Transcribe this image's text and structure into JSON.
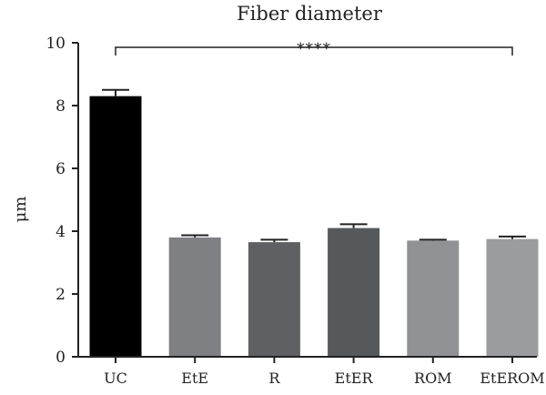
{
  "chart_data": {
    "type": "bar",
    "title": "Fiber diameter",
    "xlabel": "",
    "ylabel": "μm",
    "ylim": [
      0,
      10
    ],
    "yticks": [
      0,
      2,
      4,
      6,
      8,
      10
    ],
    "grid": false,
    "categories": [
      "UC",
      "EtE",
      "R",
      "EtER",
      "ROM",
      "EtEROM"
    ],
    "values": [
      8.3,
      3.8,
      3.65,
      4.1,
      3.7,
      3.75
    ],
    "errors": [
      0.2,
      0.07,
      0.08,
      0.12,
      0.03,
      0.08
    ],
    "colors": [
      "#000000",
      "#7f8083",
      "#5e6064",
      "#56595c",
      "#909296",
      "#9a9c9f"
    ],
    "significance": {
      "label": "****",
      "from": "UC",
      "to": "EtEROM"
    }
  }
}
